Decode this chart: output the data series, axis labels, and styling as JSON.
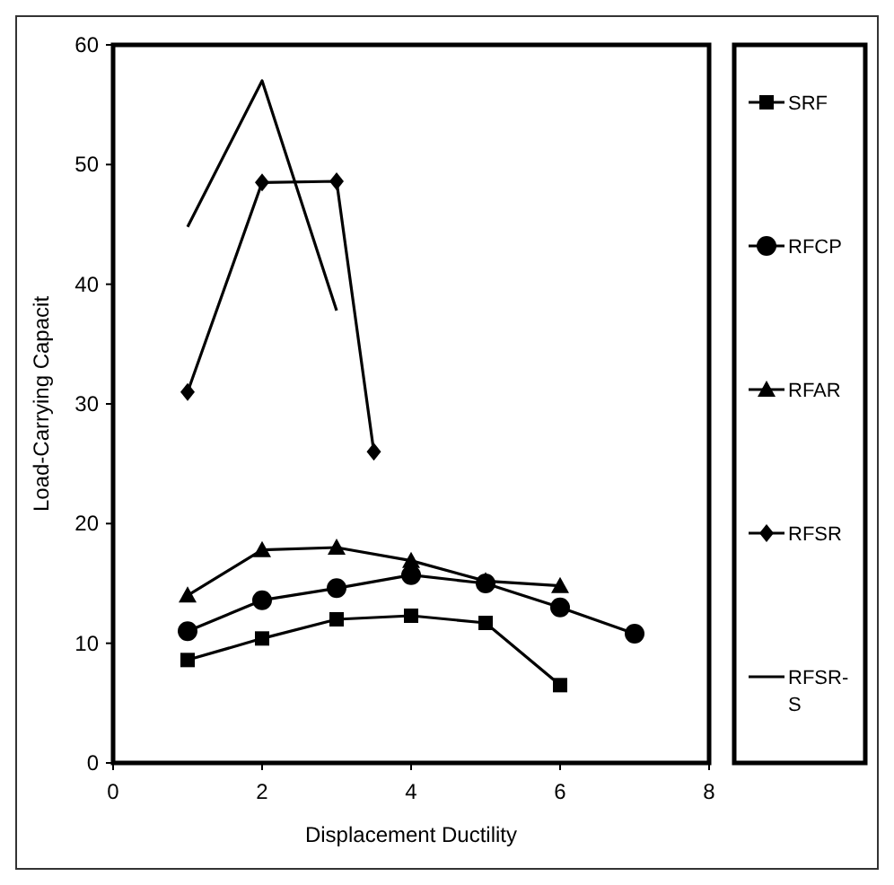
{
  "chart_data": {
    "type": "line",
    "xlabel": "Displacement Ductility",
    "ylabel": "Load-Carrying Capacit",
    "xlim": [
      0,
      8
    ],
    "xticks": [
      0,
      2,
      4,
      6,
      8
    ],
    "ylim": [
      0,
      60
    ],
    "yticks": [
      0,
      10,
      20,
      30,
      40,
      50,
      60
    ],
    "grid": false,
    "legend": "right",
    "series": [
      {
        "name": "SRF",
        "color": "#000000",
        "marker": "square",
        "x": [
          1,
          2,
          3,
          4,
          5,
          6
        ],
        "values": [
          8.6,
          10.4,
          12,
          12.3,
          11.7,
          6.5
        ]
      },
      {
        "name": "RFCP",
        "color": "#000000",
        "marker": "circle",
        "x": [
          1,
          2,
          3,
          4,
          5,
          6,
          7
        ],
        "values": [
          11,
          13.6,
          14.6,
          15.7,
          15,
          13,
          10.8
        ]
      },
      {
        "name": "RFAR",
        "color": "#000000",
        "marker": "triangle",
        "x": [
          1,
          2,
          3,
          4,
          5,
          6
        ],
        "values": [
          14,
          17.8,
          18,
          16.9,
          15.2,
          14.8
        ]
      },
      {
        "name": "RFSR",
        "color": "#000000",
        "marker": "diamond",
        "x": [
          1,
          2,
          3,
          3.5
        ],
        "values": [
          31,
          48.5,
          48.6,
          26
        ]
      },
      {
        "name": "RFSR-S",
        "color": "#000000",
        "marker": "none",
        "x": [
          1,
          2,
          3
        ],
        "values": [
          44.8,
          57,
          37.8
        ]
      }
    ]
  }
}
